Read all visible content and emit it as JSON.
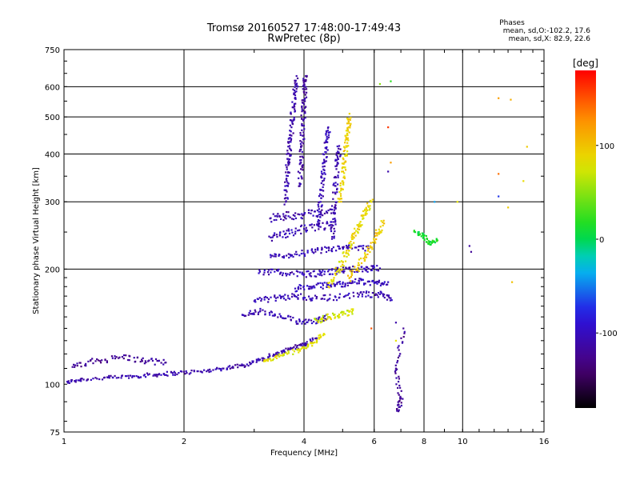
{
  "chart_data": {
    "type": "scatter",
    "title": "Tromsø 20160527 17:48:00-17:49:43",
    "subtitle": "RwPretec (8p)",
    "xlabel": "Frequency [MHz]",
    "ylabel": "Stationary phase Virtual Height [km]",
    "x_scale": "log",
    "y_scale": "log",
    "xlim": [
      1,
      16
    ],
    "ylim": [
      75,
      750
    ],
    "x_ticks": [
      1,
      2,
      4,
      6,
      8,
      10,
      16
    ],
    "x_tick_labels": [
      "1",
      "2",
      "4",
      "6",
      "8",
      "10",
      "16"
    ],
    "x_grid": [
      2,
      4,
      6,
      8,
      10
    ],
    "y_ticks": [
      75,
      100,
      200,
      300,
      400,
      500,
      600,
      750
    ],
    "y_tick_labels": [
      "75",
      "100",
      "200",
      "300",
      "400",
      "500",
      "600",
      "750"
    ],
    "y_grid": [
      200,
      300,
      400,
      500,
      600
    ],
    "grid": true,
    "colorbar": {
      "label": "[deg]",
      "min": -180,
      "max": 180,
      "ticks": [
        100,
        0,
        -100
      ],
      "tick_labels": [
        "100",
        "0",
        "-100"
      ]
    },
    "stats": {
      "header": "Phases",
      "line1": "mean, sd,O:-102.2, 17.6",
      "line2": "mean, sd,X: 82.9, 22.6"
    },
    "series": [
      {
        "trace": "E-layer",
        "phase_deg": -110,
        "spread": 2,
        "points": [
          [
            1.0,
            101
          ],
          [
            1.1,
            103
          ],
          [
            1.3,
            104
          ],
          [
            1.5,
            105
          ],
          [
            1.7,
            106
          ],
          [
            1.9,
            107
          ],
          [
            2.2,
            108
          ],
          [
            2.5,
            110
          ],
          [
            2.8,
            112
          ],
          [
            3.1,
            116
          ]
        ]
      },
      {
        "trace": "Es-upper",
        "phase_deg": -120,
        "spread": 3,
        "points": [
          [
            1.05,
            111
          ],
          [
            1.2,
            115
          ],
          [
            1.4,
            118
          ],
          [
            1.6,
            115
          ],
          [
            1.8,
            114
          ]
        ]
      },
      {
        "trace": "E-to-F",
        "phase_deg": -110,
        "spread": 2,
        "points": [
          [
            3.1,
            116
          ],
          [
            3.4,
            120
          ],
          [
            3.7,
            124
          ],
          [
            4.0,
            127
          ],
          [
            4.3,
            132
          ]
        ]
      },
      {
        "trace": "E-yellow",
        "phase_deg": 80,
        "spread": 2,
        "points": [
          [
            3.2,
            115
          ],
          [
            3.5,
            119
          ],
          [
            3.9,
            123
          ],
          [
            4.2,
            128
          ],
          [
            4.5,
            135
          ]
        ]
      },
      {
        "trace": "F-trace-150",
        "phase_deg": -105,
        "spread": 3,
        "points": [
          [
            2.8,
            152
          ],
          [
            3.1,
            155
          ],
          [
            3.5,
            150
          ],
          [
            3.9,
            146
          ],
          [
            4.3,
            147
          ],
          [
            4.6,
            150
          ]
        ]
      },
      {
        "trace": "F-trace-150x",
        "phase_deg": 75,
        "spread": 3,
        "points": [
          [
            4.3,
            147
          ],
          [
            4.6,
            150
          ],
          [
            5.0,
            152
          ],
          [
            5.3,
            156
          ]
        ]
      },
      {
        "trace": "F-trace-165",
        "phase_deg": -105,
        "spread": 3,
        "points": [
          [
            3.0,
            165
          ],
          [
            3.4,
            168
          ],
          [
            3.8,
            170
          ],
          [
            4.2,
            168
          ],
          [
            4.8,
            169
          ],
          [
            5.6,
            172
          ],
          [
            6.2,
            172
          ],
          [
            6.6,
            168
          ]
        ]
      },
      {
        "trace": "F-trace-180",
        "phase_deg": -100,
        "spread": 3,
        "points": [
          [
            3.8,
            178
          ],
          [
            4.2,
            180
          ],
          [
            4.6,
            182
          ],
          [
            5.0,
            183
          ],
          [
            5.5,
            186
          ],
          [
            6.0,
            184
          ],
          [
            6.5,
            185
          ]
        ]
      },
      {
        "trace": "F-trace-195",
        "phase_deg": -105,
        "spread": 3,
        "points": [
          [
            3.1,
            197
          ],
          [
            3.5,
            196
          ],
          [
            4.0,
            194
          ],
          [
            4.4,
            195
          ],
          [
            4.8,
            198
          ],
          [
            5.2,
            200
          ],
          [
            5.7,
            200
          ],
          [
            6.2,
            201
          ]
        ]
      },
      {
        "trace": "F-trace-220",
        "phase_deg": -105,
        "spread": 3,
        "points": [
          [
            3.3,
            215
          ],
          [
            3.7,
            218
          ],
          [
            4.2,
            222
          ],
          [
            4.7,
            226
          ],
          [
            5.2,
            228
          ],
          [
            5.8,
            226
          ]
        ]
      },
      {
        "trace": "F-trace-250",
        "phase_deg": -105,
        "spread": 4,
        "points": [
          [
            3.3,
            242
          ],
          [
            3.6,
            248
          ],
          [
            4.0,
            255
          ],
          [
            4.4,
            258
          ],
          [
            4.8,
            262
          ]
        ]
      },
      {
        "trace": "F-trace-280",
        "phase_deg": -110,
        "spread": 4,
        "points": [
          [
            3.3,
            272
          ],
          [
            3.6,
            276
          ],
          [
            4.0,
            278
          ],
          [
            4.4,
            282
          ],
          [
            4.8,
            288
          ]
        ]
      },
      {
        "trace": "F-X-mid",
        "phase_deg": 85,
        "spread": 4,
        "points": [
          [
            4.6,
            180
          ],
          [
            4.9,
            200
          ],
          [
            5.1,
            220
          ],
          [
            5.3,
            240
          ],
          [
            5.5,
            260
          ],
          [
            5.7,
            280
          ],
          [
            5.9,
            300
          ]
        ]
      },
      {
        "trace": "F-X-mid2",
        "phase_deg": 95,
        "spread": 4,
        "points": [
          [
            5.2,
            190
          ],
          [
            5.5,
            205
          ],
          [
            5.8,
            225
          ],
          [
            6.1,
            245
          ],
          [
            6.3,
            265
          ]
        ]
      },
      {
        "trace": "F-X-top",
        "phase_deg": 90,
        "spread": 3,
        "points": [
          [
            4.9,
            300
          ],
          [
            5.0,
            340
          ],
          [
            5.05,
            380
          ],
          [
            5.1,
            420
          ],
          [
            5.15,
            460
          ],
          [
            5.2,
            510
          ]
        ]
      },
      {
        "trace": "F-O-vertical-1",
        "phase_deg": -110,
        "spread": 3,
        "points": [
          [
            3.6,
            300
          ],
          [
            3.62,
            340
          ],
          [
            3.65,
            380
          ],
          [
            3.68,
            420
          ],
          [
            3.72,
            470
          ],
          [
            3.76,
            530
          ],
          [
            3.8,
            580
          ],
          [
            3.83,
            640
          ]
        ]
      },
      {
        "trace": "F-O-vertical-2",
        "phase_deg": -115,
        "spread": 3,
        "points": [
          [
            3.9,
            330
          ],
          [
            3.93,
            380
          ],
          [
            3.95,
            430
          ],
          [
            3.98,
            490
          ],
          [
            4.0,
            540
          ],
          [
            4.02,
            600
          ],
          [
            4.04,
            640
          ]
        ]
      },
      {
        "trace": "F-O-vertical-3",
        "phase_deg": -105,
        "spread": 3,
        "points": [
          [
            4.35,
            260
          ],
          [
            4.4,
            300
          ],
          [
            4.45,
            340
          ],
          [
            4.5,
            380
          ],
          [
            4.55,
            430
          ],
          [
            4.6,
            470
          ]
        ]
      },
      {
        "trace": "F-O-vertical-4",
        "phase_deg": -110,
        "spread": 3,
        "points": [
          [
            4.7,
            240
          ],
          [
            4.75,
            280
          ],
          [
            4.8,
            330
          ],
          [
            4.85,
            380
          ],
          [
            4.9,
            420
          ]
        ]
      },
      {
        "trace": "sparse-low",
        "phase_deg": -120,
        "spread": 1,
        "points": [
          [
            6.9,
            85
          ],
          [
            7.0,
            92
          ],
          [
            6.8,
            110
          ],
          [
            7.1,
            140
          ]
        ]
      },
      {
        "trace": "sparse-high",
        "phase_deg": 10,
        "spread": 2,
        "points": [
          [
            7.6,
            250
          ],
          [
            8.0,
            245
          ],
          [
            8.3,
            232
          ],
          [
            8.6,
            240
          ]
        ]
      }
    ],
    "outliers": [
      {
        "x": 12.3,
        "y": 560,
        "phase_deg": 120
      },
      {
        "x": 13.2,
        "y": 555,
        "phase_deg": 110
      },
      {
        "x": 12.3,
        "y": 355,
        "phase_deg": 140
      },
      {
        "x": 13.0,
        "y": 290,
        "phase_deg": 95
      },
      {
        "x": 12.3,
        "y": 310,
        "phase_deg": -70
      },
      {
        "x": 14.2,
        "y": 340,
        "phase_deg": 85
      },
      {
        "x": 13.3,
        "y": 185,
        "phase_deg": 100
      },
      {
        "x": 14.5,
        "y": 418,
        "phase_deg": 95
      },
      {
        "x": 10.4,
        "y": 230,
        "phase_deg": -115
      },
      {
        "x": 10.5,
        "y": 222,
        "phase_deg": -120
      },
      {
        "x": 9.7,
        "y": 300,
        "phase_deg": 80
      },
      {
        "x": 8.5,
        "y": 300,
        "phase_deg": -40
      },
      {
        "x": 6.2,
        "y": 610,
        "phase_deg": 50
      },
      {
        "x": 6.6,
        "y": 620,
        "phase_deg": 20
      },
      {
        "x": 6.5,
        "y": 470,
        "phase_deg": 160
      },
      {
        "x": 6.5,
        "y": 360,
        "phase_deg": -110
      },
      {
        "x": 6.8,
        "y": 130,
        "phase_deg": 80
      },
      {
        "x": 6.6,
        "y": 380,
        "phase_deg": 120
      },
      {
        "x": 5.9,
        "y": 140,
        "phase_deg": 150
      },
      {
        "x": 6.8,
        "y": 145,
        "phase_deg": -110
      }
    ]
  }
}
